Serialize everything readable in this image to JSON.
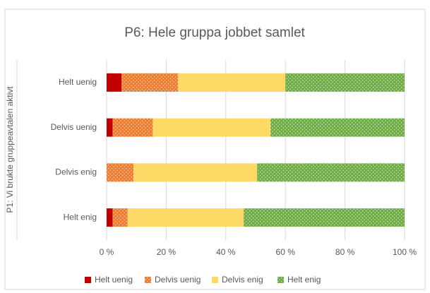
{
  "chart_data": {
    "type": "stacked_bar_horizontal",
    "title": "P6: Hele gruppa jobbet samlet",
    "y_label": "P1: Vi brukte gruppeavtalen aktivt",
    "categories": [
      "Helt uenig",
      "Delvis uenig",
      "Delvis enig",
      "Helt enig"
    ],
    "series": [
      {
        "name": "Helt uenig",
        "color": "#c00000",
        "pattern": "solid",
        "values": [
          5,
          2,
          0,
          2
        ]
      },
      {
        "name": "Delvis uenig",
        "color": "#ed7d31",
        "pattern": "dotted",
        "values": [
          19,
          13.5,
          9,
          5
        ]
      },
      {
        "name": "Delvis enig",
        "color": "#ffd966",
        "pattern": "solid",
        "values": [
          36,
          39.5,
          41.5,
          39
        ]
      },
      {
        "name": "Helt enig",
        "color": "#70ad47",
        "pattern": "dotted",
        "values": [
          40,
          45,
          49.5,
          54
        ]
      }
    ],
    "xlim": [
      0,
      100
    ],
    "xticks": [
      {
        "value": 0,
        "label": "0 %"
      },
      {
        "value": 20,
        "label": "20 %"
      },
      {
        "value": 40,
        "label": "40 %"
      },
      {
        "value": 60,
        "label": "60 %"
      },
      {
        "value": 80,
        "label": "80 %"
      },
      {
        "value": 100,
        "label": "100 %"
      }
    ],
    "grid": true,
    "legend": "bottom"
  }
}
